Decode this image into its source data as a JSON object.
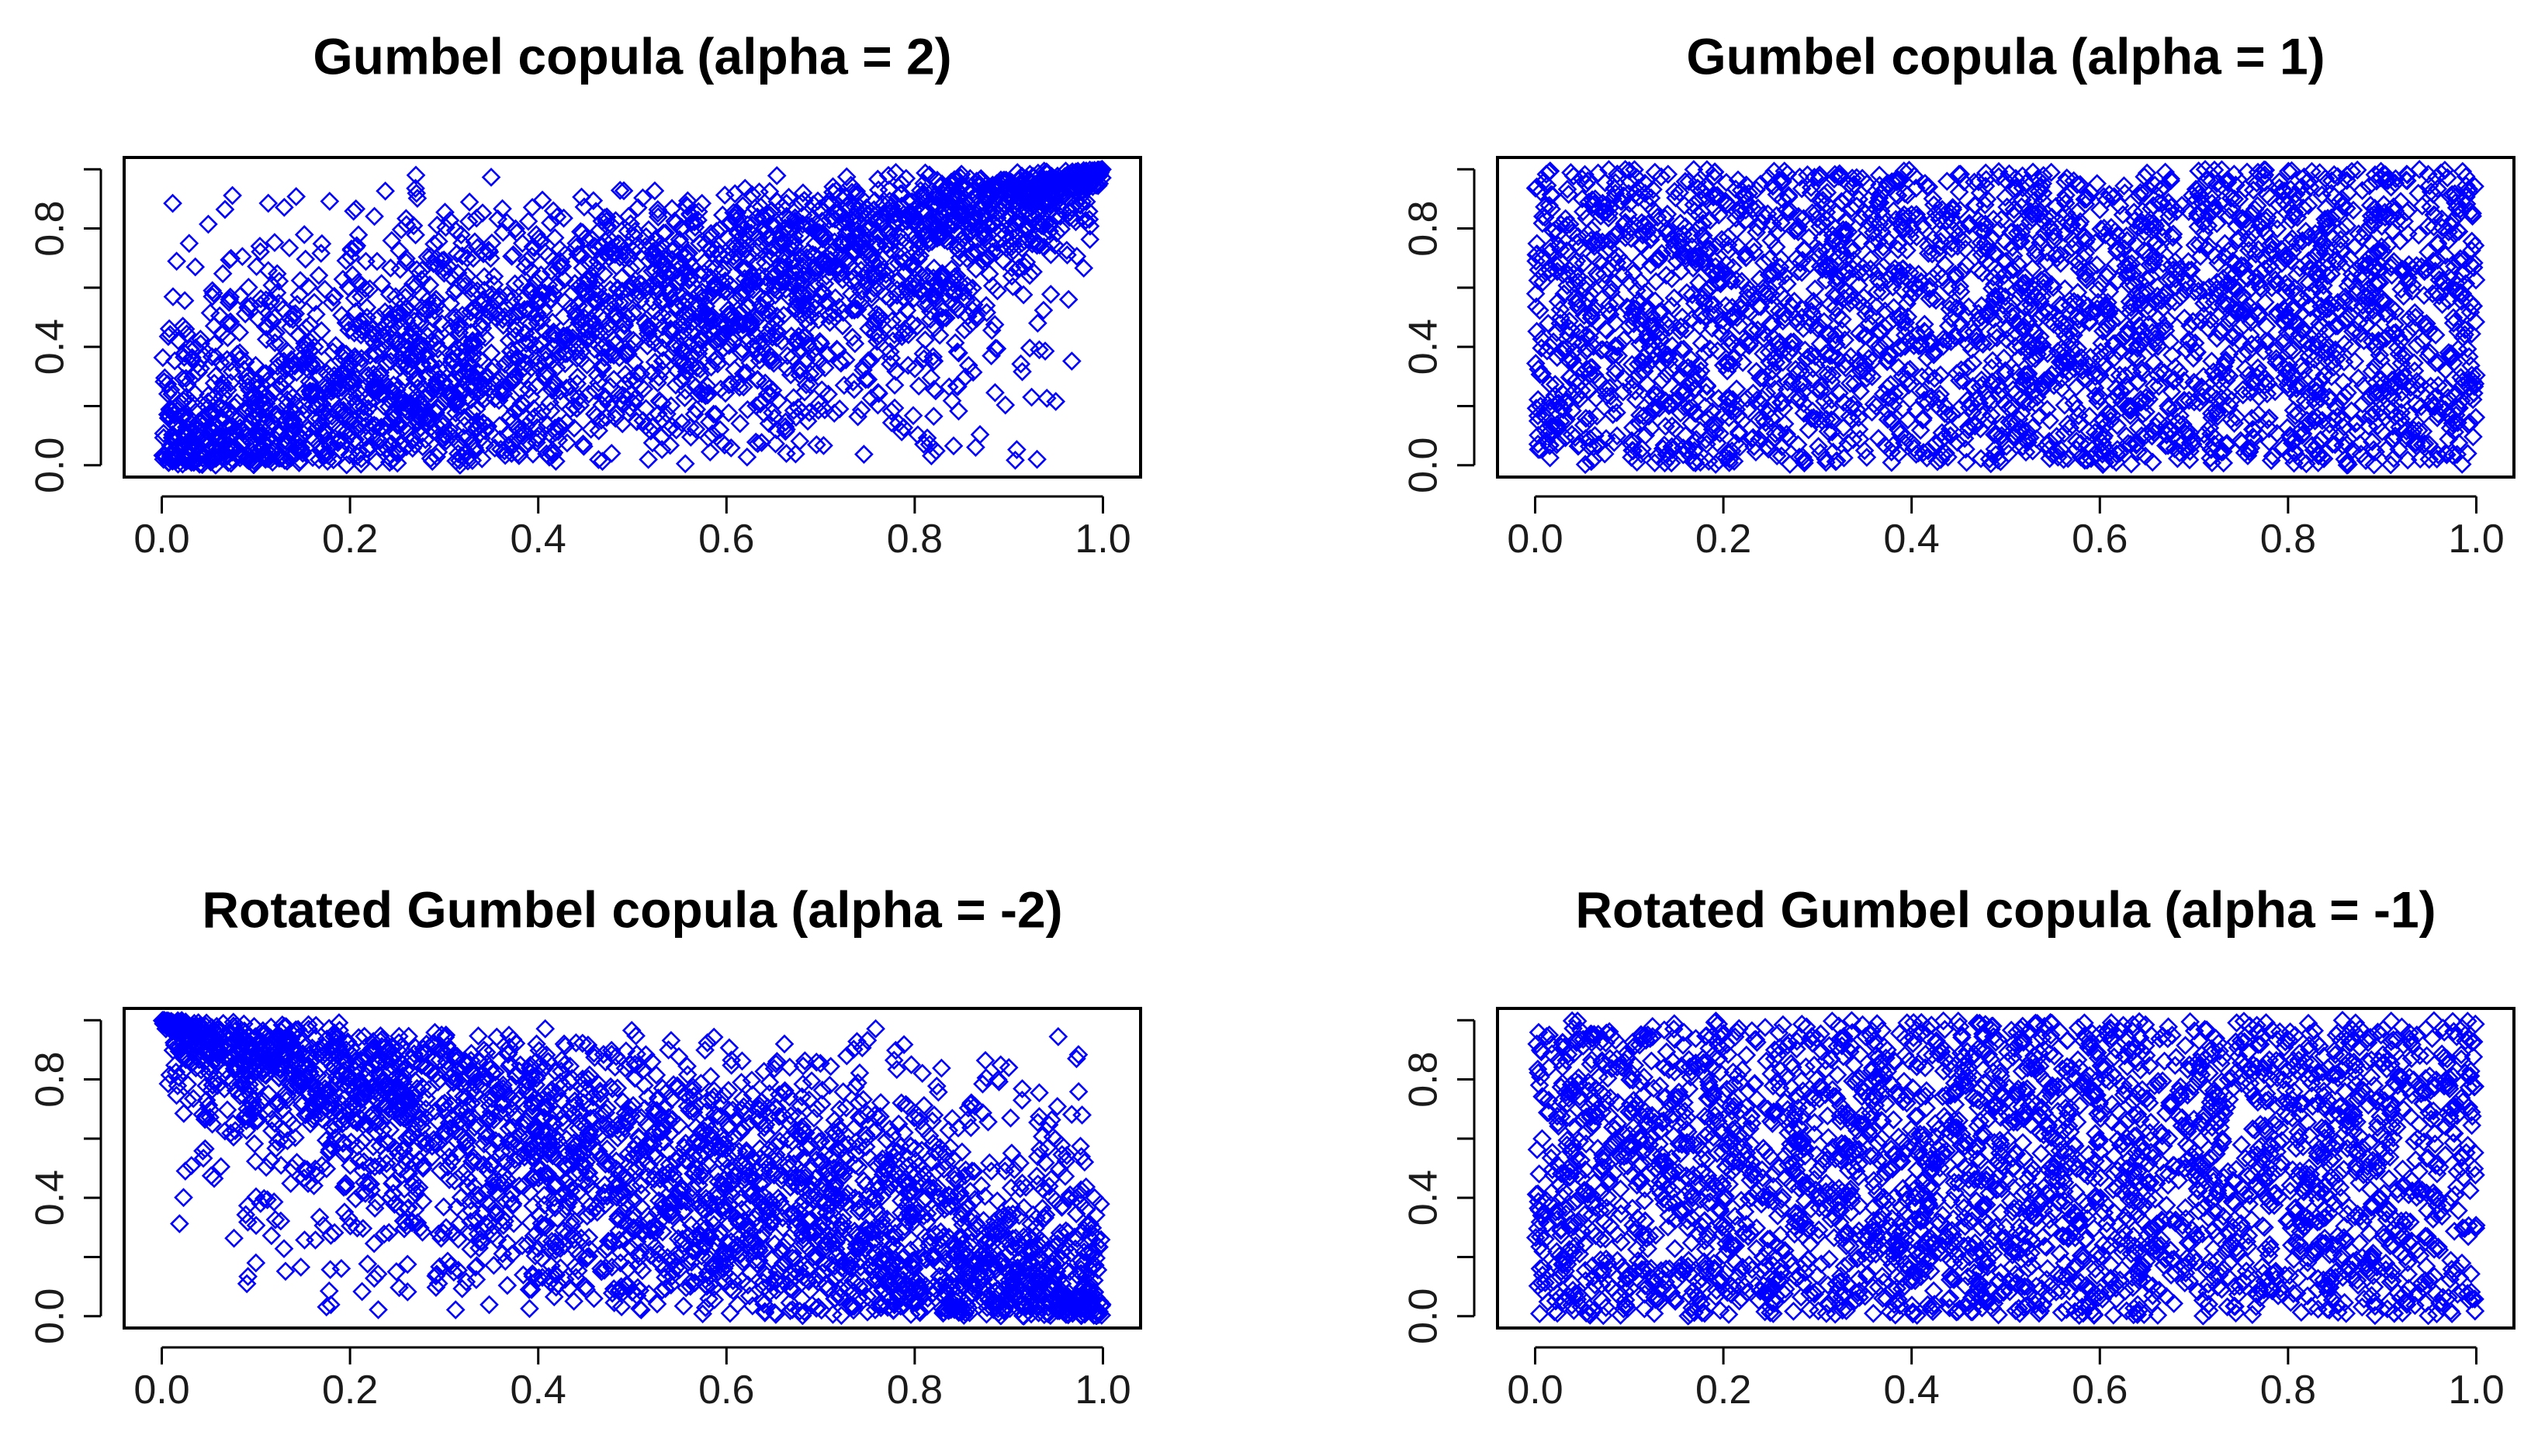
{
  "chart_data": [
    {
      "type": "scatter",
      "title": "Gumbel copula (alpha = 2)",
      "xlabel": "",
      "ylabel": "",
      "xlim": [
        0,
        1
      ],
      "ylim": [
        0,
        1
      ],
      "xticks": [
        "0.0",
        "0.2",
        "0.4",
        "0.6",
        "0.8",
        "1.0"
      ],
      "yticks": [
        "0.0",
        "0.4",
        "0.8"
      ],
      "marker": "open-diamond",
      "color": "#0000ff",
      "grid": false,
      "legend": "none",
      "series": [
        {
          "n_points": 3000,
          "dependence": "upper-tail positive",
          "points": [
            [
              0.12,
              0.17
            ],
            [
              0.2,
              0.29
            ],
            [
              0.33,
              0.36
            ],
            [
              0.45,
              0.53
            ],
            [
              0.55,
              0.62
            ],
            [
              0.68,
              0.7
            ],
            [
              0.8,
              0.84
            ],
            [
              0.92,
              0.9
            ],
            [
              0.98,
              0.99
            ],
            [
              0.06,
              0.03
            ],
            [
              0.27,
              0.98
            ],
            [
              0.93,
              0.02
            ]
          ]
        }
      ]
    },
    {
      "type": "scatter",
      "title": "Gumbel copula (alpha = 1)",
      "xlabel": "",
      "ylabel": "",
      "xlim": [
        0,
        1
      ],
      "ylim": [
        0,
        1
      ],
      "xticks": [
        "0.0",
        "0.2",
        "0.4",
        "0.6",
        "0.8",
        "1.0"
      ],
      "yticks": [
        "0.0",
        "0.4",
        "0.8"
      ],
      "marker": "open-diamond",
      "color": "#0000ff",
      "grid": false,
      "legend": "none",
      "series": [
        {
          "n_points": 3000,
          "dependence": "independence",
          "points": [
            [
              0.05,
              0.9
            ],
            [
              0.22,
              0.15
            ],
            [
              0.41,
              0.62
            ],
            [
              0.58,
              0.33
            ],
            [
              0.77,
              0.81
            ],
            [
              0.95,
              0.07
            ]
          ]
        }
      ]
    },
    {
      "type": "scatter",
      "title": "Rotated Gumbel copula (alpha = -2)",
      "xlabel": "",
      "ylabel": "",
      "xlim": [
        0,
        1
      ],
      "ylim": [
        0,
        1
      ],
      "xticks": [
        "0.0",
        "0.2",
        "0.4",
        "0.6",
        "0.8",
        "1.0"
      ],
      "yticks": [
        "0.0",
        "0.4",
        "0.8"
      ],
      "marker": "open-diamond",
      "color": "#0000ff",
      "grid": false,
      "legend": "none",
      "series": [
        {
          "n_points": 3000,
          "dependence": "negative, tail at (0,1) and (1,0)",
          "points": [
            [
              0.01,
              0.99
            ],
            [
              0.1,
              0.87
            ],
            [
              0.25,
              0.72
            ],
            [
              0.4,
              0.55
            ],
            [
              0.55,
              0.42
            ],
            [
              0.7,
              0.3
            ],
            [
              0.85,
              0.16
            ],
            [
              0.99,
              0.02
            ],
            [
              0.1,
              0.18
            ],
            [
              0.9,
              0.84
            ]
          ]
        }
      ]
    },
    {
      "type": "scatter",
      "title": "Rotated Gumbel copula (alpha = -1)",
      "xlabel": "",
      "ylabel": "",
      "xlim": [
        0,
        1
      ],
      "ylim": [
        0,
        1
      ],
      "xticks": [
        "0.0",
        "0.2",
        "0.4",
        "0.6",
        "0.8",
        "1.0"
      ],
      "yticks": [
        "0.0",
        "0.4",
        "0.8"
      ],
      "marker": "open-diamond",
      "color": "#0000ff",
      "grid": false,
      "legend": "none",
      "series": [
        {
          "n_points": 3000,
          "dependence": "independence",
          "points": [
            [
              0.03,
              0.2
            ],
            [
              0.18,
              0.85
            ],
            [
              0.36,
              0.44
            ],
            [
              0.52,
              0.1
            ],
            [
              0.71,
              0.66
            ],
            [
              0.89,
              0.37
            ]
          ]
        }
      ]
    }
  ]
}
